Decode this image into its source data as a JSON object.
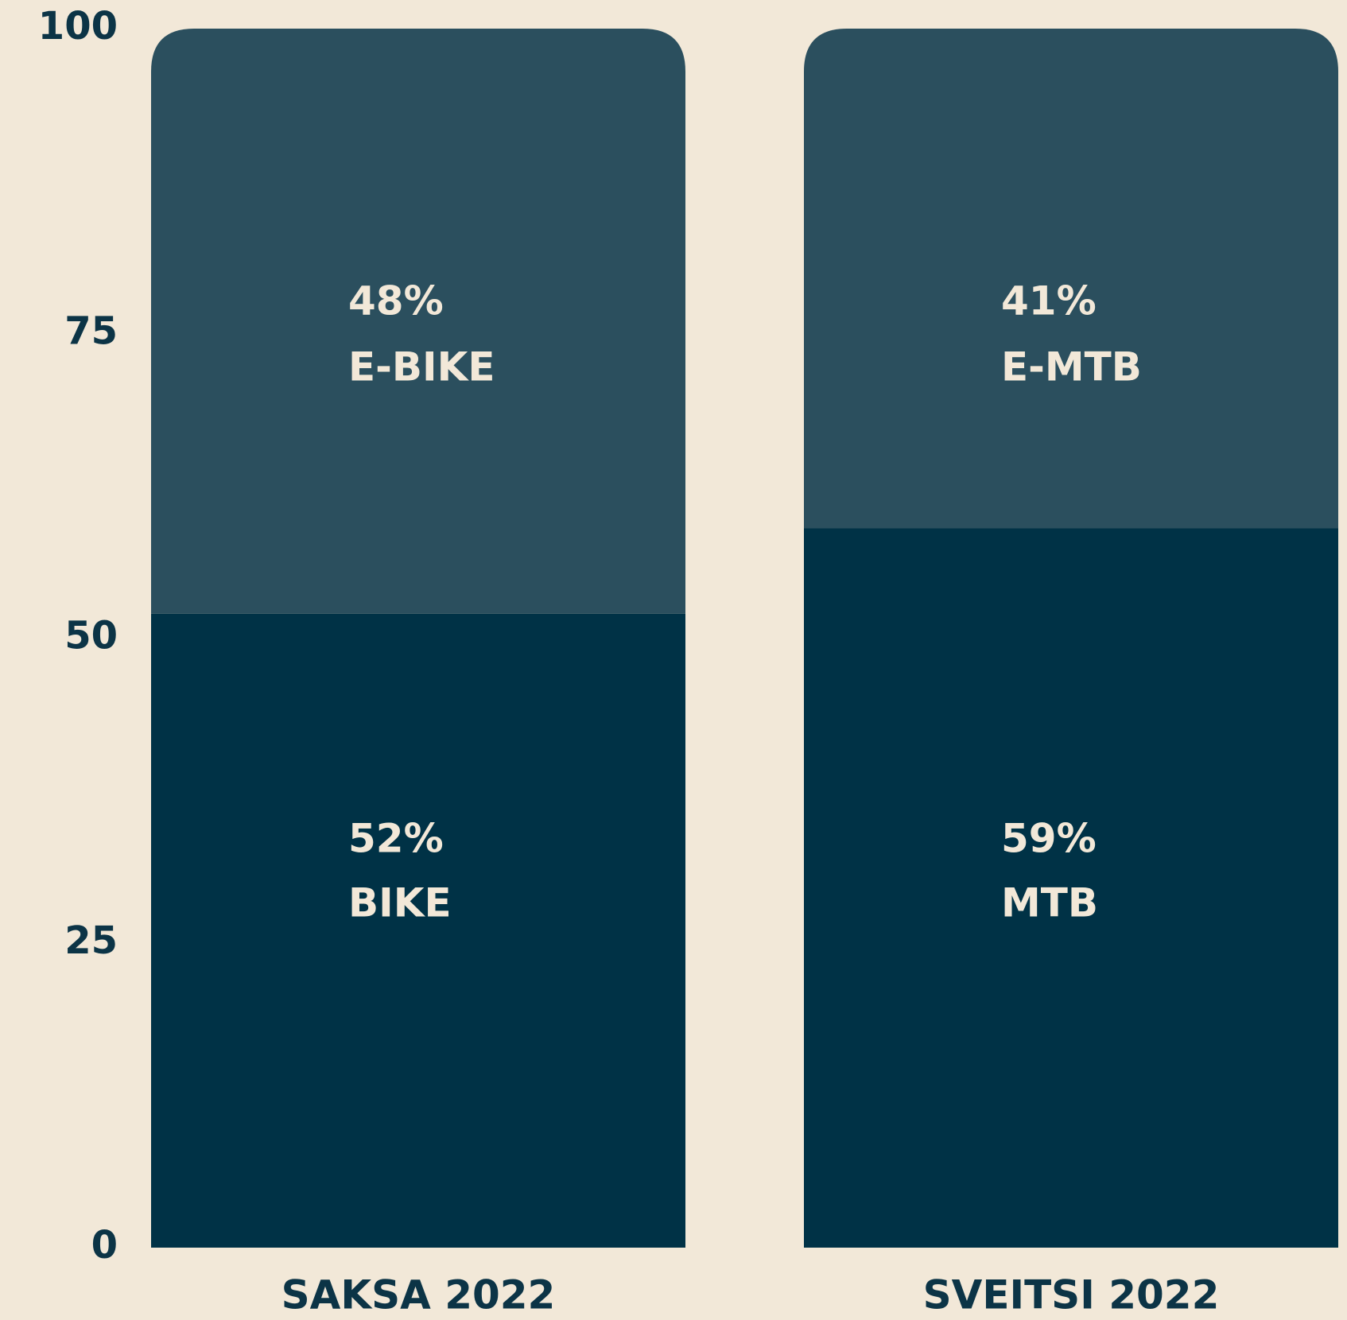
{
  "chart_data": {
    "type": "stacked_bar",
    "categories": [
      "SAKSA 2022",
      "SVEITSI 2022"
    ],
    "bars": [
      {
        "segments": [
          {
            "name": "BIKE",
            "value": 52,
            "value_label": "52%",
            "color": "#003246"
          },
          {
            "name": "E-BIKE",
            "value": 48,
            "value_label": "48%",
            "color": "#2b4f5e"
          }
        ]
      },
      {
        "segments": [
          {
            "name": "MTB",
            "value": 59,
            "value_label": "59%",
            "color": "#003246"
          },
          {
            "name": "E-MTB",
            "value": 41,
            "value_label": "41%",
            "color": "#2b4f5e"
          }
        ]
      }
    ],
    "ylim": [
      0,
      100
    ],
    "yticks": [
      0,
      25,
      50,
      75,
      100
    ]
  }
}
